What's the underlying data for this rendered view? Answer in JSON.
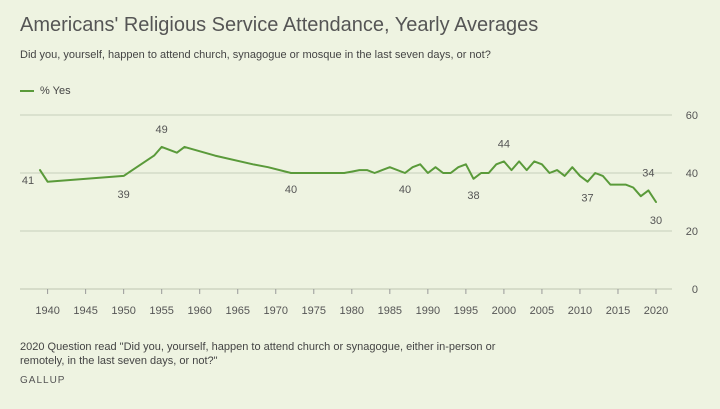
{
  "title": "Americans' Religious Service Attendance, Yearly Averages",
  "subtitle": "Did you, yourself, happen to attend church, synagogue or mosque in the last seven days, or not?",
  "footnote": "2020 Question read \"Did you, yourself, happen to attend church or synagogue, either in-person or remotely, in the last seven days, or not?\"",
  "source": "GALLUP",
  "colors": {
    "line": "#5a9a3a",
    "grid": "#c7cfbb",
    "background": "#eef3e1"
  },
  "chart_data": {
    "type": "line",
    "title": "Americans' Religious Service Attendance, Yearly Averages",
    "xlim": [
      1937,
      2022
    ],
    "ylim": [
      0,
      60
    ],
    "x_ticks": [
      1940,
      1945,
      1950,
      1955,
      1960,
      1965,
      1970,
      1975,
      1980,
      1985,
      1990,
      1995,
      2000,
      2005,
      2010,
      2015,
      2020
    ],
    "y_ticks": [
      0,
      20,
      40,
      60
    ],
    "grid": "horizontal",
    "legend": "top-left",
    "series": [
      {
        "name": "% Yes",
        "points": [
          [
            1939,
            41
          ],
          [
            1940,
            37
          ],
          [
            1950,
            39
          ],
          [
            1954,
            46
          ],
          [
            1955,
            49
          ],
          [
            1957,
            47
          ],
          [
            1958,
            49
          ],
          [
            1962,
            46
          ],
          [
            1967,
            43
          ],
          [
            1969,
            42
          ],
          [
            1972,
            40
          ],
          [
            1979,
            40
          ],
          [
            1980,
            40.5
          ],
          [
            1981,
            41
          ],
          [
            1982,
            41
          ],
          [
            1983,
            40
          ],
          [
            1984,
            41
          ],
          [
            1985,
            42
          ],
          [
            1987,
            40
          ],
          [
            1988,
            42
          ],
          [
            1989,
            43
          ],
          [
            1990,
            40
          ],
          [
            1991,
            42
          ],
          [
            1992,
            40
          ],
          [
            1993,
            40
          ],
          [
            1994,
            42
          ],
          [
            1995,
            43
          ],
          [
            1996,
            38
          ],
          [
            1997,
            40
          ],
          [
            1998,
            40
          ],
          [
            1999,
            43
          ],
          [
            2000,
            44
          ],
          [
            2001,
            41
          ],
          [
            2002,
            44
          ],
          [
            2003,
            41
          ],
          [
            2004,
            44
          ],
          [
            2005,
            43
          ],
          [
            2006,
            40
          ],
          [
            2007,
            41
          ],
          [
            2008,
            39
          ],
          [
            2009,
            42
          ],
          [
            2010,
            39
          ],
          [
            2011,
            37
          ],
          [
            2012,
            40
          ],
          [
            2013,
            39
          ],
          [
            2014,
            36
          ],
          [
            2015,
            36
          ],
          [
            2016,
            36
          ],
          [
            2017,
            35
          ],
          [
            2018,
            32
          ],
          [
            2019,
            34
          ],
          [
            2020,
            30
          ]
        ]
      }
    ],
    "annotations": [
      {
        "x": 1939,
        "y": 41,
        "text": "41"
      },
      {
        "x": 1950,
        "y": 39,
        "text": "39"
      },
      {
        "x": 1955,
        "y": 49,
        "text": "49"
      },
      {
        "x": 1972,
        "y": 40,
        "text": "40"
      },
      {
        "x": 1987,
        "y": 40,
        "text": "40"
      },
      {
        "x": 1996,
        "y": 38,
        "text": "38"
      },
      {
        "x": 2000,
        "y": 44,
        "text": "44"
      },
      {
        "x": 2011,
        "y": 37,
        "text": "37"
      },
      {
        "x": 2019,
        "y": 34,
        "text": "34"
      },
      {
        "x": 2020,
        "y": 30,
        "text": "30"
      }
    ]
  }
}
